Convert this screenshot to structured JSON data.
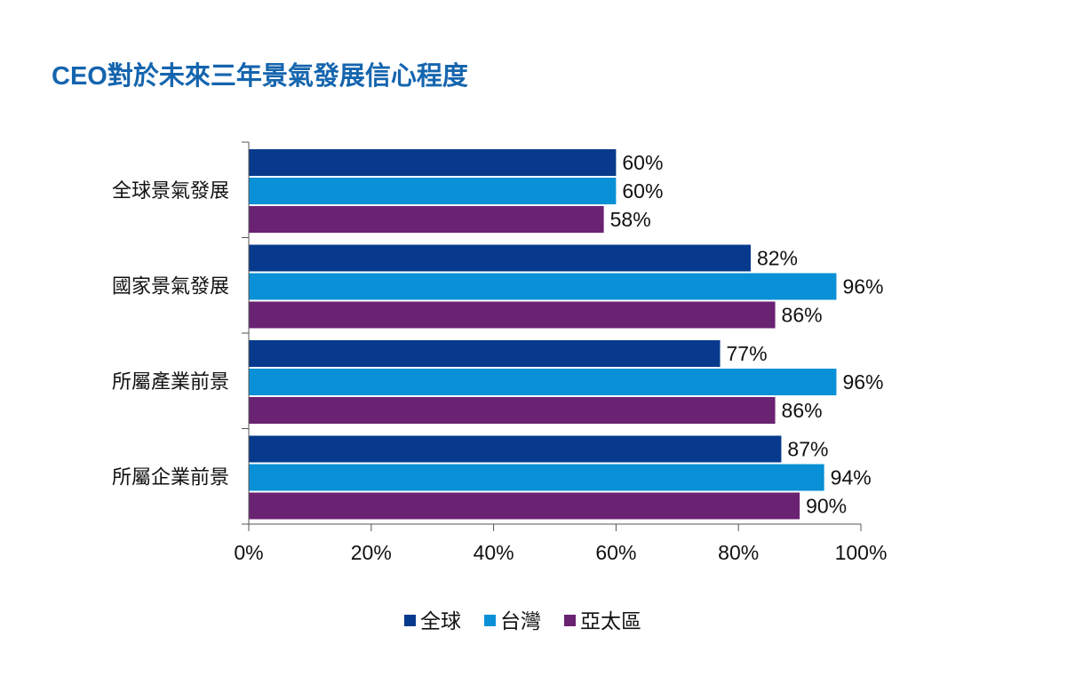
{
  "chart_data": {
    "type": "bar",
    "orientation": "horizontal",
    "title": "CEO對於未來三年景氣發展信心程度",
    "categories": [
      "全球景氣發展",
      "國家景氣發展",
      "所屬產業前景",
      "所屬企業前景"
    ],
    "series": [
      {
        "name": "全球",
        "color": "#073a8c",
        "values": [
          60,
          82,
          77,
          87
        ]
      },
      {
        "name": "台灣",
        "color": "#0a90d6",
        "values": [
          60,
          96,
          96,
          94
        ]
      },
      {
        "name": "亞太區",
        "color": "#6a2272",
        "values": [
          58,
          86,
          86,
          90
        ]
      }
    ],
    "value_labels": [
      [
        "60%",
        "82%",
        "77%",
        "87%"
      ],
      [
        "60%",
        "96%",
        "96%",
        "94%"
      ],
      [
        "58%",
        "86%",
        "86%",
        "90%"
      ]
    ],
    "xlim": [
      0,
      100
    ],
    "x_ticks": [
      0,
      20,
      40,
      60,
      80,
      100
    ],
    "x_tick_labels": [
      "0%",
      "20%",
      "40%",
      "60%",
      "80%",
      "100%"
    ],
    "grid": false,
    "legend_position": "bottom"
  }
}
